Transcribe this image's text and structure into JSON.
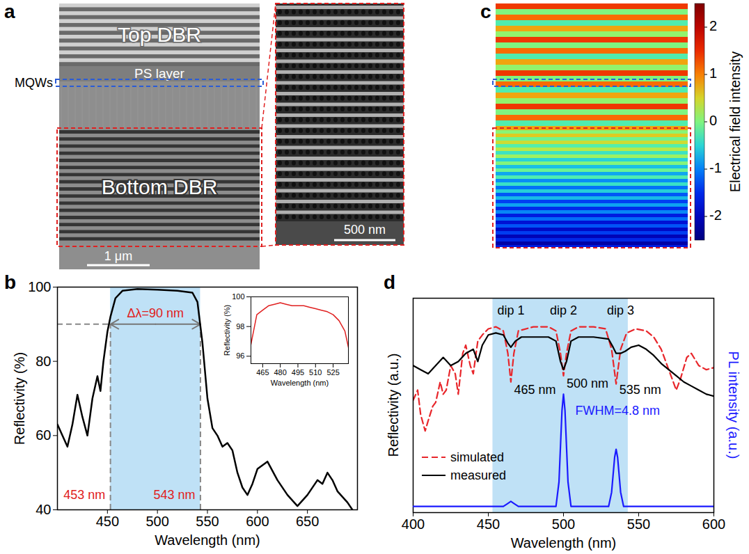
{
  "chart_data": [
    {
      "panel": "a",
      "type": "image",
      "top_layer": "Top DBR",
      "spacer_layer": "PS layer",
      "active_region": "MQWs",
      "bottom_layer": "Bottom DBR",
      "scale_bar": "1 μm",
      "inset_scale_bar": "500 nm"
    },
    {
      "panel": "b",
      "type": "line",
      "x_label": "Wavelength (nm)",
      "y_label": "Reflectivity (%)",
      "xlim": [
        400,
        700
      ],
      "xticks": [
        450,
        500,
        550,
        600,
        650
      ],
      "ylim": [
        40,
        100
      ],
      "yticks": [
        40,
        60,
        80,
        100
      ],
      "highlight": [
        453,
        543
      ],
      "hline": 90,
      "series": [
        {
          "color": "#000000",
          "x": [
            400,
            405,
            410,
            415,
            420,
            425,
            430,
            435,
            440,
            443,
            446,
            450,
            453,
            458,
            465,
            480,
            500,
            520,
            535,
            540,
            545,
            550,
            555,
            560,
            565,
            570,
            575,
            580,
            585,
            590,
            595,
            600,
            610,
            620,
            630,
            640,
            650,
            660,
            665,
            670,
            675,
            680,
            690,
            695
          ],
          "values": [
            63,
            60,
            57,
            63,
            71,
            65,
            60,
            70,
            76,
            72,
            80,
            88,
            92,
            97,
            99,
            99.5,
            99.3,
            99,
            98.5,
            96,
            85,
            70,
            62,
            60,
            57,
            58,
            56,
            50,
            46,
            44,
            47,
            51,
            53,
            48,
            44,
            41,
            44,
            48,
            47,
            50,
            48,
            45,
            42,
            40
          ]
        }
      ],
      "annotations": [
        {
          "text": "Δλ=90 nm",
          "x": 498,
          "y": 93
        },
        {
          "text": "453 nm",
          "x": 427,
          "y": 44
        },
        {
          "text": "543 nm",
          "x": 517,
          "y": 44
        }
      ],
      "inset": {
        "type": "line",
        "x_label": "Wavelength (nm)",
        "y_label": "Reflectivity (%)",
        "xlim": [
          455,
          538
        ],
        "xticks": [
          465,
          480,
          495,
          510,
          525
        ],
        "ylim": [
          95.5,
          100
        ],
        "yticks": [
          96,
          98,
          100
        ],
        "series": [
          {
            "color": "#e02020",
            "x": [
              455,
              460,
              465,
              470,
              475,
              480,
              485,
              490,
              495,
              500,
              505,
              510,
              515,
              520,
              525,
              530,
              535,
              538
            ],
            "values": [
              96.8,
              98.8,
              99.1,
              99.4,
              99.5,
              99.6,
              99.5,
              99.4,
              99.4,
              99.4,
              99.3,
              99.2,
              99.1,
              99.0,
              98.8,
              98.4,
              97.7,
              96.6
            ]
          }
        ]
      }
    },
    {
      "panel": "c",
      "type": "heatmap",
      "colorbar": {
        "label": "Electrical field intensity",
        "range": [
          -2.5,
          2.5
        ],
        "ticks": [
          -2,
          -1,
          0,
          1,
          2
        ]
      }
    },
    {
      "panel": "d",
      "type": "line",
      "x_label": "Wavelength (nm)",
      "y_label": "Reflectivity (a.u.)",
      "y2_label": "PL intensity (a.u.)",
      "xlim": [
        400,
        600
      ],
      "xticks": [
        400,
        450,
        500,
        550,
        600
      ],
      "ylim": [
        0,
        1.05
      ],
      "yticks": [],
      "y2lim": [
        0,
        1.05
      ],
      "y2ticks": [],
      "tick_labels": "x",
      "legend": "lower left",
      "highlight": [
        453,
        543
      ],
      "series": [
        {
          "name": "simulated",
          "color": "#e8262b",
          "line_style": "dashed",
          "x": [
            400,
            403,
            405,
            408,
            410,
            413,
            415,
            418,
            420,
            422,
            425,
            428,
            430,
            433,
            435,
            438,
            440,
            443,
            446,
            450,
            455,
            460,
            463,
            465,
            467,
            470,
            480,
            490,
            495,
            498,
            500,
            502,
            505,
            510,
            520,
            528,
            532,
            535,
            538,
            542,
            548,
            555,
            560,
            565,
            570,
            575,
            578,
            582,
            585,
            590,
            595,
            600
          ],
          "values": [
            0.55,
            0.6,
            0.48,
            0.4,
            0.45,
            0.52,
            0.54,
            0.64,
            0.58,
            0.6,
            0.72,
            0.68,
            0.58,
            0.78,
            0.82,
            0.72,
            0.68,
            0.84,
            0.87,
            0.9,
            0.91,
            0.89,
            0.78,
            0.64,
            0.78,
            0.89,
            0.91,
            0.91,
            0.89,
            0.78,
            0.67,
            0.78,
            0.89,
            0.91,
            0.91,
            0.9,
            0.8,
            0.63,
            0.8,
            0.88,
            0.9,
            0.89,
            0.86,
            0.8,
            0.7,
            0.6,
            0.66,
            0.76,
            0.78,
            0.72,
            0.7,
            0.71
          ]
        },
        {
          "name": "measured",
          "color": "#000000",
          "line_style": "solid",
          "x": [
            400,
            405,
            410,
            415,
            420,
            425,
            430,
            435,
            440,
            443,
            446,
            450,
            455,
            460,
            463,
            465,
            468,
            472,
            480,
            490,
            495,
            498,
            500,
            502,
            505,
            510,
            520,
            530,
            533,
            535,
            538,
            541,
            545,
            550,
            555,
            560,
            565,
            570,
            575,
            580,
            585,
            590,
            595,
            600
          ],
          "values": [
            0.72,
            0.7,
            0.68,
            0.72,
            0.76,
            0.72,
            0.74,
            0.78,
            0.8,
            0.74,
            0.82,
            0.87,
            0.88,
            0.87,
            0.83,
            0.81,
            0.84,
            0.86,
            0.86,
            0.86,
            0.84,
            0.74,
            0.7,
            0.74,
            0.84,
            0.86,
            0.86,
            0.85,
            0.81,
            0.78,
            0.78,
            0.79,
            0.81,
            0.82,
            0.8,
            0.77,
            0.73,
            0.7,
            0.67,
            0.64,
            0.62,
            0.6,
            0.58,
            0.57
          ]
        },
        {
          "color": "#1a1aff",
          "line_style": "solid",
          "axis": "y2",
          "x": [
            400,
            450,
            460,
            463,
            465,
            467,
            470,
            495,
            497,
            499,
            500,
            501,
            503,
            505,
            530,
            532,
            534,
            535,
            536,
            538,
            540,
            600
          ],
          "values": [
            0.03,
            0.03,
            0.03,
            0.045,
            0.055,
            0.045,
            0.03,
            0.03,
            0.15,
            0.5,
            0.58,
            0.5,
            0.15,
            0.03,
            0.03,
            0.1,
            0.27,
            0.31,
            0.27,
            0.1,
            0.03,
            0.03
          ]
        }
      ],
      "annotations": [
        {
          "text": "dip 1",
          "x": 465,
          "y": 0.99
        },
        {
          "text": "dip 2",
          "x": 500,
          "y": 0.99
        },
        {
          "text": "dip 3",
          "x": 538,
          "y": 0.99
        },
        {
          "text": "465 nm",
          "x": 481,
          "y": 0.6
        },
        {
          "text": "500 nm",
          "x": 516,
          "y": 0.63
        },
        {
          "text": "535 nm",
          "x": 551,
          "y": 0.6
        },
        {
          "text": "FWHM=4.8 nm",
          "x": 536,
          "y": 0.5,
          "axis": "y2"
        }
      ]
    }
  ]
}
